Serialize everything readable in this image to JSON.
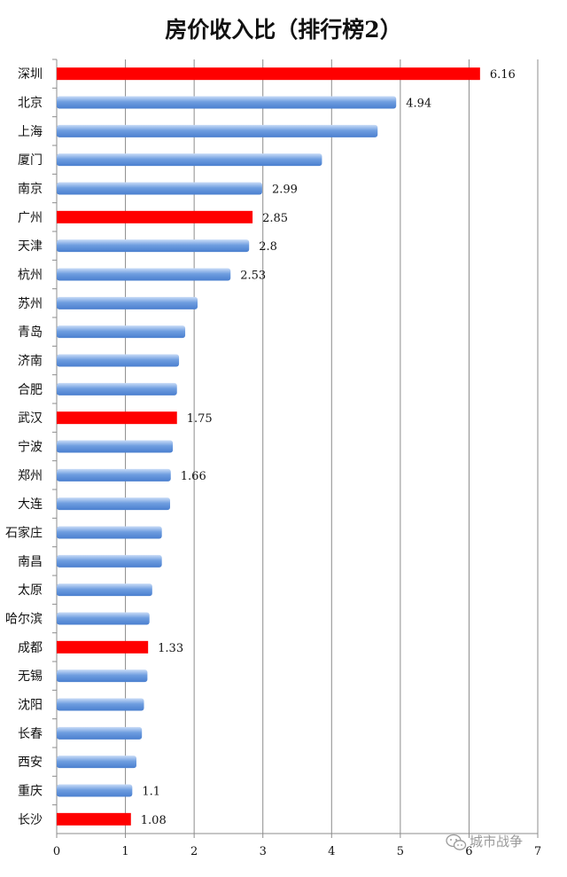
{
  "chart_data": {
    "type": "bar",
    "orientation": "horizontal",
    "title": "房价收入比（排行榜2）",
    "xlim": [
      0,
      7
    ],
    "x_ticks": [
      "0",
      "1",
      "2",
      "3",
      "4",
      "5",
      "6",
      "7"
    ],
    "grid": true,
    "categories": [
      "深圳",
      "北京",
      "上海",
      "厦门",
      "南京",
      "广州",
      "天津",
      "杭州",
      "苏州",
      "青岛",
      "济南",
      "合肥",
      "武汉",
      "宁波",
      "郑州",
      "大连",
      "石家庄",
      "南昌",
      "太原",
      "哈尔滨",
      "成都",
      "无锡",
      "沈阳",
      "长春",
      "西安",
      "重庆",
      "长沙"
    ],
    "values": [
      6.16,
      4.94,
      4.67,
      3.86,
      2.99,
      2.85,
      2.8,
      2.53,
      2.05,
      1.87,
      1.78,
      1.75,
      1.75,
      1.69,
      1.66,
      1.65,
      1.53,
      1.53,
      1.39,
      1.35,
      1.33,
      1.32,
      1.27,
      1.24,
      1.16,
      1.1,
      1.08
    ],
    "data_labels": [
      "6.16",
      "4.94",
      "",
      "",
      "2.99",
      "2.85",
      "2.8",
      "2.53",
      "",
      "",
      "",
      "",
      "1.75",
      "",
      "1.66",
      "",
      "",
      "",
      "",
      "",
      "1.33",
      "",
      "",
      "",
      "",
      "1.1",
      "1.08"
    ],
    "highlighted": [
      true,
      false,
      false,
      false,
      false,
      true,
      false,
      false,
      false,
      false,
      false,
      false,
      true,
      false,
      false,
      false,
      false,
      false,
      false,
      false,
      true,
      false,
      false,
      false,
      false,
      false,
      true
    ],
    "colors": {
      "normal": "#5b8fd9",
      "normal_light": "#a9c5f0",
      "highlight": "#ff0000",
      "grid": "#8c8c8c"
    }
  },
  "watermark": {
    "text": "城市战争",
    "icon": "wechat-icon"
  }
}
